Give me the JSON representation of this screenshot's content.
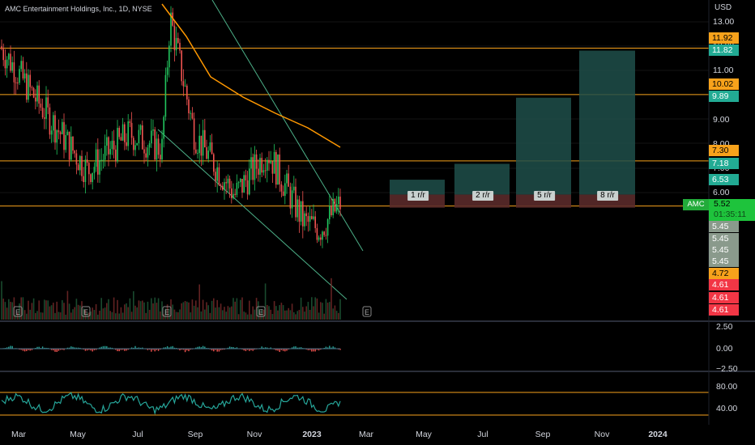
{
  "chart_title": "AMC Entertainment Holdings, Inc., 1D, NYSE",
  "currency_label": "USD",
  "price_axis_ticks": [
    "13.00",
    "12.00",
    "11.00",
    "10.00",
    "9.00",
    "8.00",
    "7.00",
    "6.00"
  ],
  "price_badges": [
    {
      "label": "11.92",
      "value": 11.92,
      "bg": "#f7a21b",
      "fg": "#000000"
    },
    {
      "label": "11.82",
      "value": 11.82,
      "bg": "#22ab94",
      "fg": "#ffffff"
    },
    {
      "label": "10.02",
      "value": 10.02,
      "bg": "#f7a21b",
      "fg": "#000000"
    },
    {
      "label": "9.89",
      "value": 9.89,
      "bg": "#22ab94",
      "fg": "#ffffff"
    },
    {
      "label": "7.30",
      "value": 7.3,
      "bg": "#f7a21b",
      "fg": "#000000"
    },
    {
      "label": "7.18",
      "value": 7.18,
      "bg": "#22ab94",
      "fg": "#ffffff"
    },
    {
      "label": "6.53",
      "value": 6.53,
      "bg": "#22ab94",
      "fg": "#ffffff"
    },
    {
      "label": "5.45",
      "value": 5.45,
      "bg": "#8a9a8c",
      "fg": "#ffffff"
    },
    {
      "label": "5.45",
      "value": 5.45,
      "bg": "#8a9a8c",
      "fg": "#ffffff"
    },
    {
      "label": "5.45",
      "value": 5.45,
      "bg": "#8a9a8c",
      "fg": "#ffffff"
    },
    {
      "label": "5.45",
      "value": 5.45,
      "bg": "#8a9a8c",
      "fg": "#ffffff"
    },
    {
      "label": "4.72",
      "value": 4.72,
      "bg": "#f7a21b",
      "fg": "#000000"
    },
    {
      "label": "4.61",
      "value": 4.61,
      "bg": "#f23645",
      "fg": "#ffffff"
    },
    {
      "label": "4.61",
      "value": 4.61,
      "bg": "#f23645",
      "fg": "#ffffff"
    },
    {
      "label": "4.61",
      "value": 4.61,
      "bg": "#f23645",
      "fg": "#ffffff"
    }
  ],
  "current": {
    "symbol": "AMC",
    "price": "5.52",
    "countdown": "01:35:11"
  },
  "horizontal_levels": [
    11.92,
    10.02,
    7.3,
    5.45
  ],
  "rr_labels": [
    "1 r/r",
    "2 r/r",
    "5 r/r",
    "8 r/r"
  ],
  "rr_boxes": [
    {
      "label": "1 r/r",
      "target": 6.53,
      "stop": 5.45
    },
    {
      "label": "2 r/r",
      "target": 7.18,
      "stop": 5.45
    },
    {
      "label": "5 r/r",
      "target": 9.89,
      "stop": 5.45
    },
    {
      "label": "8 r/r",
      "target": 11.82,
      "stop": 5.45
    }
  ],
  "entry_price": 5.92,
  "earnings_marker": "E",
  "macd_axis_ticks": [
    "2.50",
    "0.00",
    "−2.50"
  ],
  "rsi_axis_ticks": [
    "80.00",
    "40.00"
  ],
  "time_axis": [
    {
      "label": "Mar",
      "bold": false
    },
    {
      "label": "May",
      "bold": false
    },
    {
      "label": "Jul",
      "bold": false
    },
    {
      "label": "Sep",
      "bold": false
    },
    {
      "label": "Nov",
      "bold": false
    },
    {
      "label": "2023",
      "bold": true
    },
    {
      "label": "Mar",
      "bold": false
    },
    {
      "label": "May",
      "bold": false
    },
    {
      "label": "Jul",
      "bold": false
    },
    {
      "label": "Sep",
      "bold": false
    },
    {
      "label": "Nov",
      "bold": false
    },
    {
      "label": "2024",
      "bold": true
    }
  ],
  "colors": {
    "background": "#000000",
    "up": "#26a69a",
    "up_bright": "#22c55e",
    "down": "#ef5350",
    "level_line": "#f7a21b",
    "ma_line": "#ff9800",
    "trendline": "#4caf87",
    "target_zone": "#1f4f4a",
    "stop_zone": "#5a2a2a",
    "rsi_line": "#26a69a"
  },
  "chart_data": {
    "type": "candlestick",
    "ticker": "AMC",
    "interval": "1D",
    "exchange": "NYSE",
    "close_trend": [
      {
        "x": "2022-03",
        "y": 12.0
      },
      {
        "x": "2022-04",
        "y": 9.8
      },
      {
        "x": "2022-05",
        "y": 6.9
      },
      {
        "x": "2022-06",
        "y": 8.4
      },
      {
        "x": "2022-07",
        "y": 7.8
      },
      {
        "x": "2022-08",
        "y": 13.2
      },
      {
        "x": "2022-09",
        "y": 8.4
      },
      {
        "x": "2022-10",
        "y": 5.9
      },
      {
        "x": "2022-11",
        "y": 7.7
      },
      {
        "x": "2022-12",
        "y": 4.8
      },
      {
        "x": "2023-01",
        "y": 4.5
      },
      {
        "x": "2023-02",
        "y": 5.52
      }
    ],
    "levels": [
      11.92,
      10.02,
      7.3,
      5.45
    ],
    "targets": [
      6.53,
      7.18,
      9.89,
      11.82
    ],
    "stop": 5.45,
    "macd_range": [
      -2.5,
      2.5
    ],
    "rsi_levels": [
      80,
      40
    ]
  }
}
